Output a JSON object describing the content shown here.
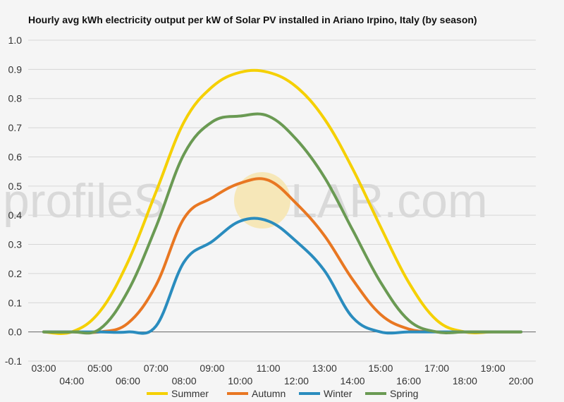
{
  "chart_data": {
    "type": "line",
    "title": "Hourly avg kWh electricity output per kW of Solar PV installed in Ariano Irpino, Italy (by season)",
    "watermark": {
      "left": "profileS",
      "right": "LAR.com"
    },
    "xlabel": "",
    "ylabel": "",
    "ylim": [
      -0.1,
      1.0
    ],
    "yticks": [
      "-0.1",
      "0.0",
      "0.1",
      "0.2",
      "0.3",
      "0.4",
      "0.5",
      "0.6",
      "0.7",
      "0.8",
      "0.9",
      "1.0"
    ],
    "x": [
      "03:00",
      "04:00",
      "05:00",
      "06:00",
      "07:00",
      "08:00",
      "09:00",
      "10:00",
      "11:00",
      "12:00",
      "13:00",
      "14:00",
      "15:00",
      "16:00",
      "17:00",
      "18:00",
      "19:00",
      "20:00"
    ],
    "grid": true,
    "legend_position": "bottom",
    "series": [
      {
        "name": "Summer",
        "color": "#f5d000",
        "values": [
          0.0,
          0.0,
          0.07,
          0.24,
          0.48,
          0.72,
          0.84,
          0.89,
          0.89,
          0.84,
          0.73,
          0.56,
          0.36,
          0.17,
          0.04,
          0.0,
          0.0,
          0.0
        ]
      },
      {
        "name": "Autumn",
        "color": "#e87722",
        "values": [
          0.0,
          0.0,
          0.0,
          0.03,
          0.16,
          0.39,
          0.46,
          0.51,
          0.52,
          0.44,
          0.33,
          0.18,
          0.06,
          0.01,
          0.0,
          0.0,
          0.0,
          0.0
        ]
      },
      {
        "name": "Winter",
        "color": "#2a8cbe",
        "values": [
          0.0,
          0.0,
          0.0,
          0.0,
          0.02,
          0.24,
          0.31,
          0.38,
          0.38,
          0.31,
          0.21,
          0.05,
          0.0,
          0.0,
          0.0,
          0.0,
          0.0,
          0.0
        ]
      },
      {
        "name": "Spring",
        "color": "#6a9a53",
        "values": [
          0.0,
          0.0,
          0.01,
          0.14,
          0.36,
          0.61,
          0.72,
          0.74,
          0.74,
          0.66,
          0.53,
          0.35,
          0.17,
          0.04,
          0.0,
          0.0,
          0.0,
          0.0
        ]
      }
    ]
  }
}
